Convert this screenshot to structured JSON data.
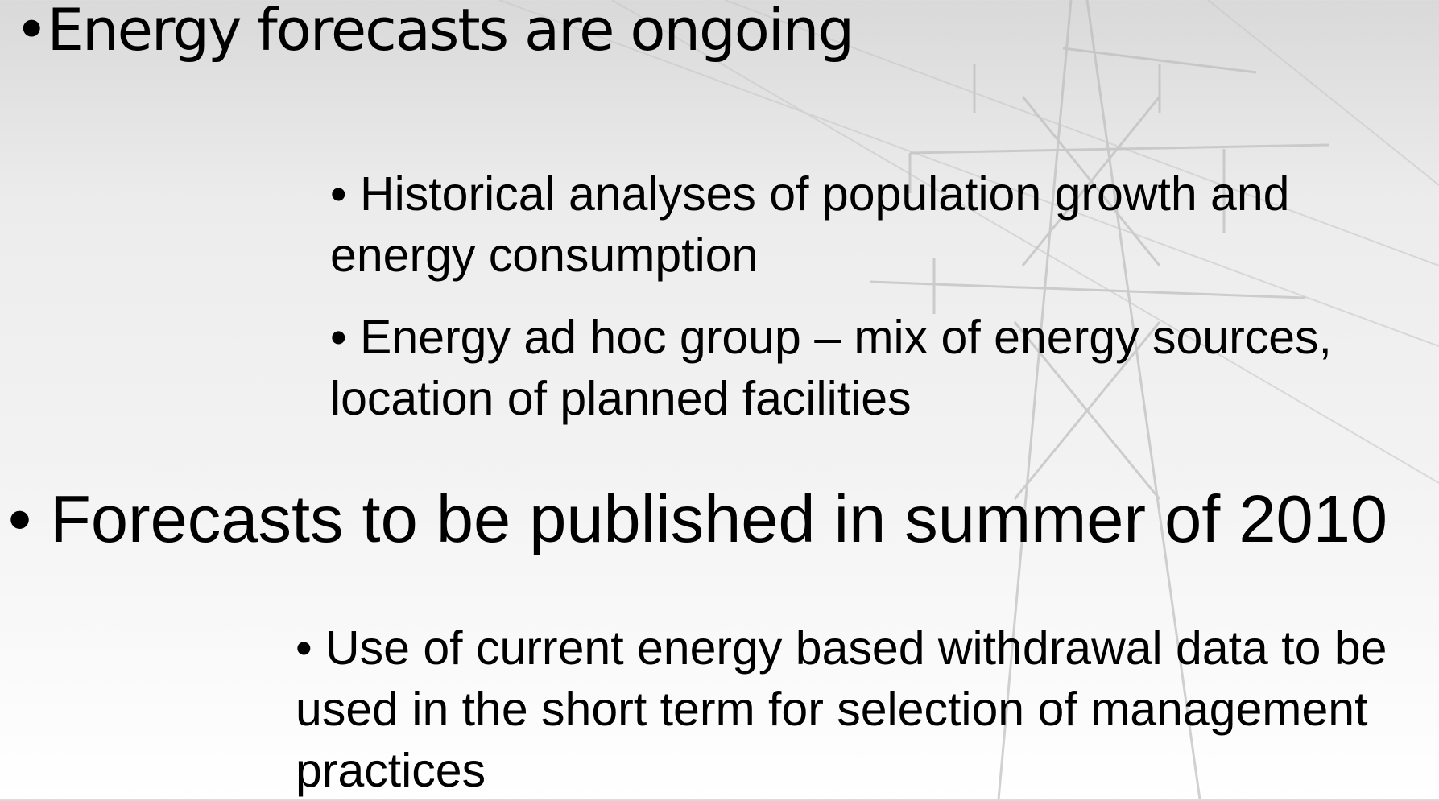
{
  "bullets": [
    {
      "text": "•Energy forecasts are ongoing",
      "children": [
        {
          "text": "• Historical analyses of population growth and energy consumption"
        },
        {
          "text": "• Energy ad hoc group – mix of energy sources, location of planned facilities"
        }
      ]
    },
    {
      "text": "• Forecasts to be published in summer of 2010",
      "children": [
        {
          "text": "• Use of current energy based withdrawal data to be used in the short term for selection of management practices"
        }
      ]
    }
  ]
}
